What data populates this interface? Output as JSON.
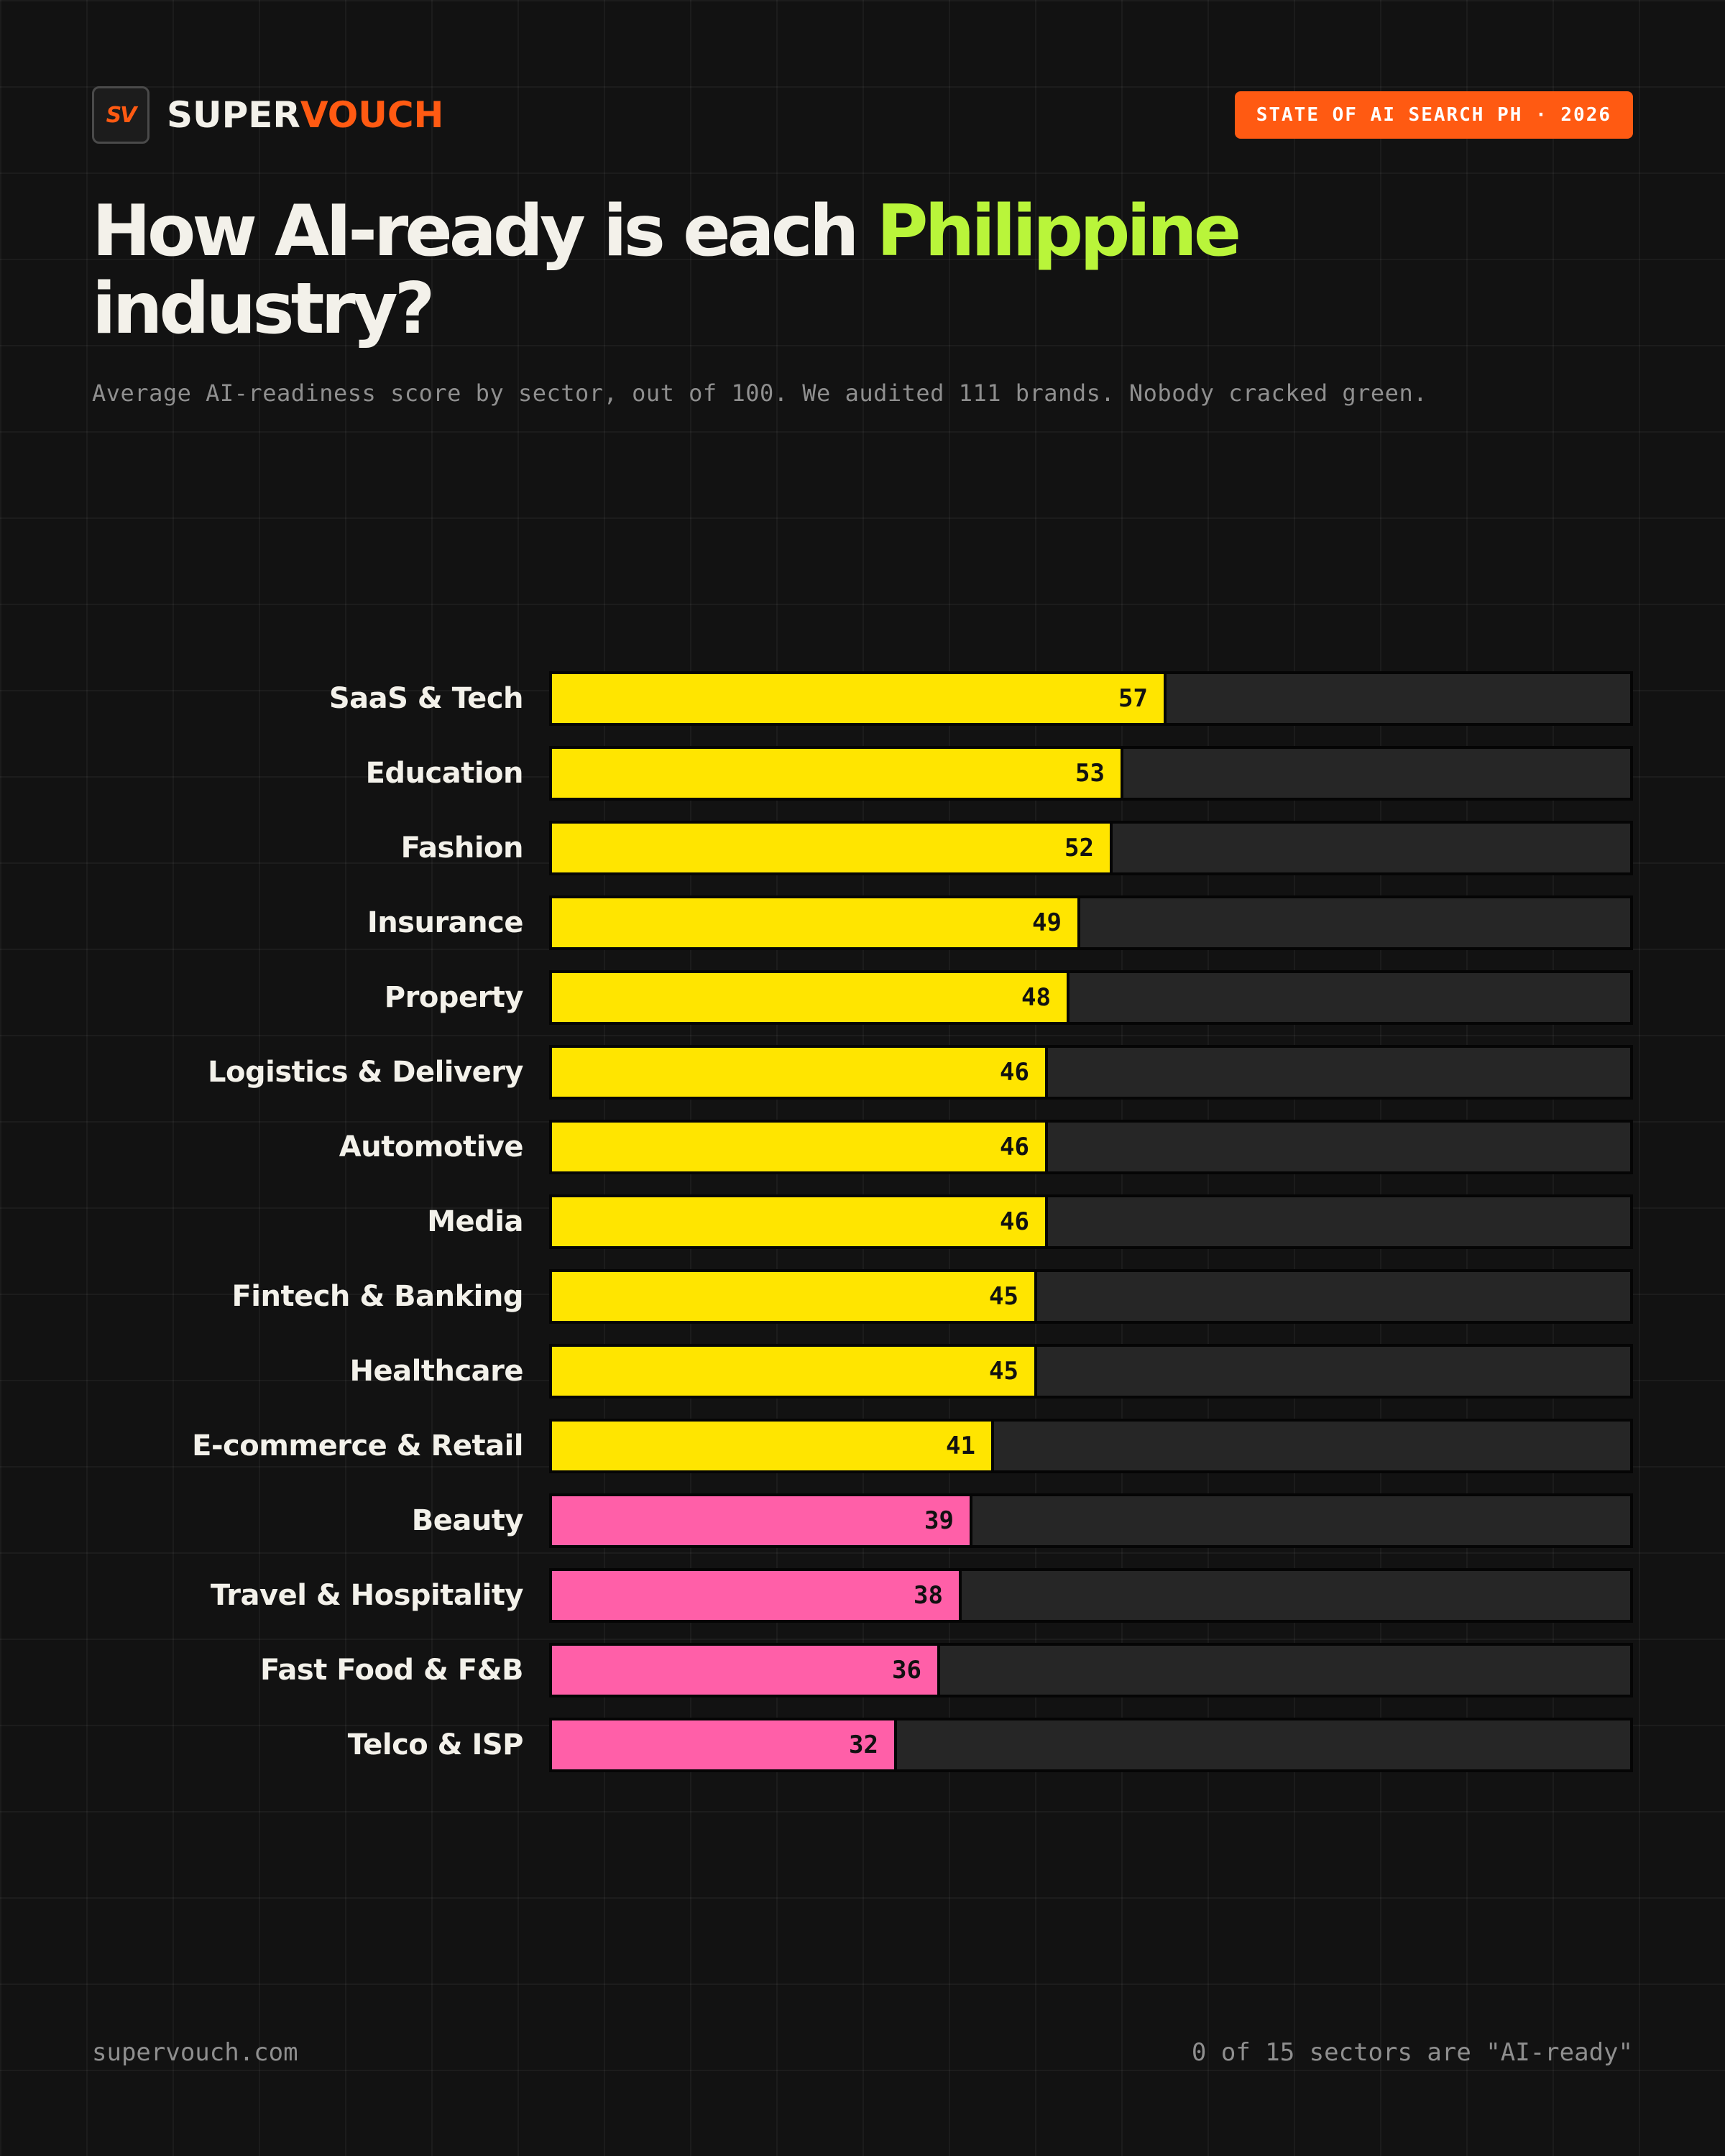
{
  "header": {
    "logo_mark": "SV",
    "brand_part1": "SUPER",
    "brand_part2": "VOUCH",
    "badge": "STATE OF AI SEARCH PH · 2026"
  },
  "title": {
    "part1": "How AI-ready is each ",
    "accent": "Philippine",
    "part2": "industry?"
  },
  "subtitle": "Average AI-readiness score by sector, out of 100. We audited 111 brands. Nobody cracked green.",
  "colors": {
    "background": "#121212",
    "brand_orange": "#ff5a12",
    "title_accent": "#b9f53a",
    "bar_yellow": "#ffe500",
    "bar_pink": "#ff5fa8",
    "track": "#262626"
  },
  "chart_data": {
    "type": "bar",
    "orientation": "horizontal",
    "title": "How AI-ready is each Philippine industry?",
    "xlim": [
      0,
      100
    ],
    "grid": false,
    "categories": [
      "SaaS & Tech",
      "Education",
      "Fashion",
      "Insurance",
      "Property",
      "Logistics & Delivery",
      "Automotive",
      "Media",
      "Fintech & Banking",
      "Healthcare",
      "E-commerce & Retail",
      "Beauty",
      "Travel & Hospitality",
      "Fast Food & F&B",
      "Telco & ISP"
    ],
    "values": [
      57,
      53,
      52,
      49,
      48,
      46,
      46,
      46,
      45,
      45,
      41,
      39,
      38,
      36,
      32
    ],
    "bar_colors": [
      "#ffe500",
      "#ffe500",
      "#ffe500",
      "#ffe500",
      "#ffe500",
      "#ffe500",
      "#ffe500",
      "#ffe500",
      "#ffe500",
      "#ffe500",
      "#ffe500",
      "#ff5fa8",
      "#ff5fa8",
      "#ff5fa8",
      "#ff5fa8"
    ]
  },
  "footer": {
    "left": "supervouch.com",
    "right": "0 of 15 sectors are \"AI-ready\""
  }
}
